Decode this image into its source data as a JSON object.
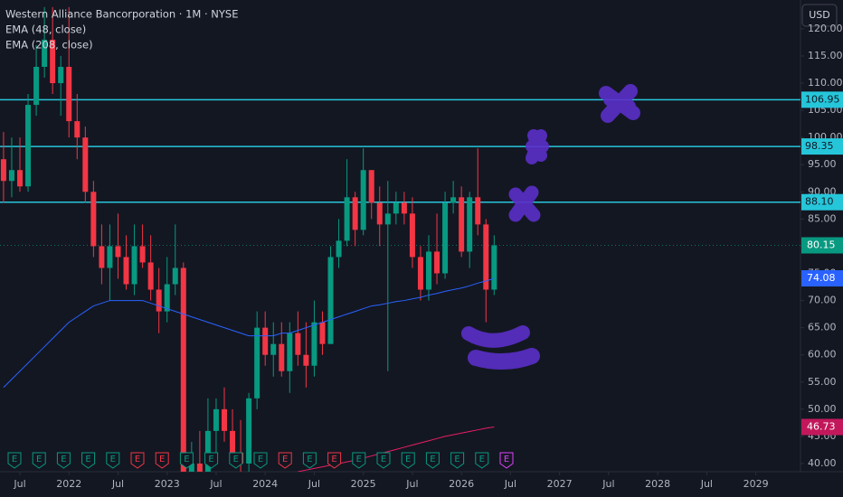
{
  "chart_data": {
    "type": "candlestick",
    "title": "Western Alliance Bancorporation · 1M · NYSE",
    "currency": "USD",
    "up_color": "#089981",
    "down_color": "#f23645",
    "x": [
      "2021-05",
      "2021-06",
      "2021-07",
      "2021-08",
      "2021-09",
      "2021-10",
      "2021-11",
      "2021-12",
      "2022-01",
      "2022-02",
      "2022-03",
      "2022-04",
      "2022-05",
      "2022-06",
      "2022-07",
      "2022-08",
      "2022-09",
      "2022-10",
      "2022-11",
      "2022-12",
      "2023-01",
      "2023-02",
      "2023-03",
      "2023-04",
      "2023-05",
      "2023-06",
      "2023-07",
      "2023-08",
      "2023-09",
      "2023-10",
      "2023-11",
      "2023-12",
      "2024-01",
      "2024-02",
      "2024-03",
      "2024-04",
      "2024-05",
      "2024-06",
      "2024-07",
      "2024-08",
      "2024-09",
      "2024-10",
      "2024-11",
      "2024-12",
      "2025-01",
      "2025-02",
      "2025-03",
      "2025-04",
      "2025-05",
      "2025-06",
      "2025-07",
      "2025-08",
      "2025-09",
      "2025-10",
      "2025-11",
      "2025-12",
      "2026-01",
      "2026-02",
      "2026-03",
      "2026-04",
      "2026-05"
    ],
    "ohlc": [
      [
        96,
        101,
        88,
        92
      ],
      [
        92,
        100,
        89,
        94
      ],
      [
        94,
        100,
        90,
        91
      ],
      [
        91,
        108,
        90,
        106
      ],
      [
        106,
        117,
        104,
        113
      ],
      [
        113,
        124,
        111,
        118
      ],
      [
        118,
        124,
        108,
        110
      ],
      [
        110,
        115,
        104,
        113
      ],
      [
        113,
        124,
        100,
        103
      ],
      [
        103,
        108,
        96,
        100
      ],
      [
        100,
        102,
        88,
        90
      ],
      [
        90,
        92,
        78,
        80
      ],
      [
        80,
        84,
        73,
        76
      ],
      [
        76,
        84,
        70,
        80
      ],
      [
        80,
        86,
        74,
        78
      ],
      [
        78,
        82,
        72,
        73
      ],
      [
        73,
        84,
        71,
        80
      ],
      [
        80,
        84,
        76,
        77
      ],
      [
        77,
        82,
        70,
        72
      ],
      [
        72,
        76,
        64,
        68
      ],
      [
        68,
        78,
        66,
        73
      ],
      [
        73,
        84,
        71,
        76
      ],
      [
        76,
        77,
        36,
        38
      ],
      [
        38,
        44,
        35,
        40
      ],
      [
        40,
        46,
        30,
        36
      ],
      [
        36,
        52,
        35,
        46
      ],
      [
        46,
        52,
        42,
        50
      ],
      [
        50,
        54,
        44,
        46
      ],
      [
        46,
        50,
        40,
        42
      ],
      [
        42,
        48,
        36,
        40
      ],
      [
        40,
        53,
        38,
        52
      ],
      [
        52,
        68,
        50,
        65
      ],
      [
        65,
        68,
        58,
        60
      ],
      [
        60,
        66,
        56,
        62
      ],
      [
        62,
        66,
        56,
        57
      ],
      [
        57,
        66,
        53,
        64
      ],
      [
        64,
        68,
        58,
        60
      ],
      [
        60,
        66,
        54,
        58
      ],
      [
        58,
        70,
        56,
        66
      ],
      [
        66,
        68,
        60,
        62
      ],
      [
        62,
        80,
        62,
        78
      ],
      [
        78,
        85,
        76,
        81
      ],
      [
        81,
        96,
        80,
        89
      ],
      [
        89,
        90,
        80,
        83
      ],
      [
        83,
        98,
        82,
        94
      ],
      [
        94,
        94,
        85,
        88
      ],
      [
        88,
        91,
        80,
        84
      ],
      [
        84,
        92,
        57,
        86
      ],
      [
        86,
        90,
        84,
        88
      ],
      [
        88,
        90,
        84,
        86
      ],
      [
        86,
        89,
        76,
        78
      ],
      [
        78,
        80,
        70,
        72
      ],
      [
        72,
        82,
        70,
        79
      ],
      [
        79,
        86,
        73,
        75
      ],
      [
        75,
        90,
        74,
        88
      ],
      [
        88,
        92,
        86,
        89
      ],
      [
        89,
        91,
        78,
        79
      ],
      [
        79,
        90,
        76,
        89
      ],
      [
        89,
        98,
        82,
        84
      ],
      [
        84,
        85,
        66,
        72
      ],
      [
        72,
        82,
        71,
        80.15
      ]
    ],
    "indicators": [
      {
        "name": "EMA (48, close)",
        "color": "#2962ff",
        "tag_color": "#2962ff",
        "values": [
          54,
          55.5,
          57,
          58.5,
          60,
          61.5,
          63,
          64.5,
          66,
          67,
          68,
          69,
          69.5,
          70,
          70,
          70,
          70,
          70,
          69.5,
          69,
          68.5,
          68,
          67.5,
          67,
          66.5,
          66,
          65.5,
          65,
          64.5,
          64,
          63.5,
          63.5,
          63.5,
          63.5,
          64,
          64,
          64.5,
          65,
          65.5,
          66,
          66.5,
          67,
          67.5,
          68,
          68.5,
          69,
          69.2,
          69.5,
          69.8,
          70,
          70.3,
          70.6,
          71,
          71.3,
          71.7,
          72,
          72.3,
          72.7,
          73.2,
          73.6,
          74.08
        ]
      },
      {
        "name": "EMA (208, close)",
        "color": "#e91e63",
        "tag_color": "#c2185b",
        "values": [
          null,
          null,
          null,
          null,
          null,
          null,
          null,
          null,
          null,
          null,
          null,
          null,
          null,
          null,
          null,
          null,
          null,
          null,
          null,
          null,
          null,
          null,
          null,
          null,
          null,
          null,
          null,
          null,
          null,
          null,
          null,
          null,
          null,
          null,
          null,
          null,
          38.5,
          38.8,
          39.1,
          39.4,
          39.7,
          40,
          40.3,
          40.6,
          41,
          41.4,
          41.8,
          42.2,
          42.6,
          43,
          43.4,
          43.8,
          44.2,
          44.6,
          45,
          45.3,
          45.6,
          45.9,
          46.2,
          46.5,
          46.73
        ]
      }
    ],
    "levels": [
      106.95,
      98.35,
      {
        "value": 88.1,
        "label": "88.10"
      }
    ],
    "level_color": "#26c6da",
    "ylim": [
      38.5,
      125.3
    ],
    "yticks": [
      {
        "value": 40,
        "label": "40.00"
      },
      {
        "value": 45,
        "label": "45.00"
      },
      {
        "value": 50,
        "label": "50.00"
      },
      {
        "value": 55,
        "label": "55.00"
      },
      {
        "value": 60,
        "label": "60.00"
      },
      {
        "value": 65,
        "label": "65.00"
      },
      {
        "value": 70,
        "label": "70.00"
      },
      {
        "value": 75,
        "label": "75.00"
      },
      {
        "value": 80,
        "label": "80.00"
      },
      {
        "value": 85,
        "label": "85.00"
      },
      {
        "value": 90,
        "label": "90.00"
      },
      {
        "value": 95,
        "label": "95.00"
      },
      {
        "value": 100,
        "label": "100.00"
      },
      {
        "value": 105,
        "label": "105.00"
      },
      {
        "value": 110,
        "label": "110.00"
      },
      {
        "value": 115,
        "label": "115.00"
      },
      {
        "value": 120,
        "label": "120.00"
      }
    ],
    "xticks": [
      {
        "value": "2021-07",
        "label": "Jul"
      },
      {
        "value": "2022-01",
        "label": "2022"
      },
      {
        "value": "2022-07",
        "label": "Jul"
      },
      {
        "value": "2023-01",
        "label": "2023"
      },
      {
        "value": "2023-07",
        "label": "Jul"
      },
      {
        "value": "2024-01",
        "label": "2024"
      },
      {
        "value": "2024-07",
        "label": "Jul"
      },
      {
        "value": "2025-01",
        "label": "2025"
      },
      {
        "value": "2025-07",
        "label": "Jul"
      },
      {
        "value": "2026-01",
        "label": "2026"
      },
      {
        "value": "2026-07",
        "label": "Jul"
      },
      {
        "value": "2027-01",
        "label": "2027"
      },
      {
        "value": "2027-07",
        "label": "Jul"
      },
      {
        "value": "2028-01",
        "label": "2028"
      },
      {
        "value": "2028-07",
        "label": "Jul"
      },
      {
        "value": "2029-01",
        "label": "2029"
      }
    ],
    "event_label": "E"
  }
}
